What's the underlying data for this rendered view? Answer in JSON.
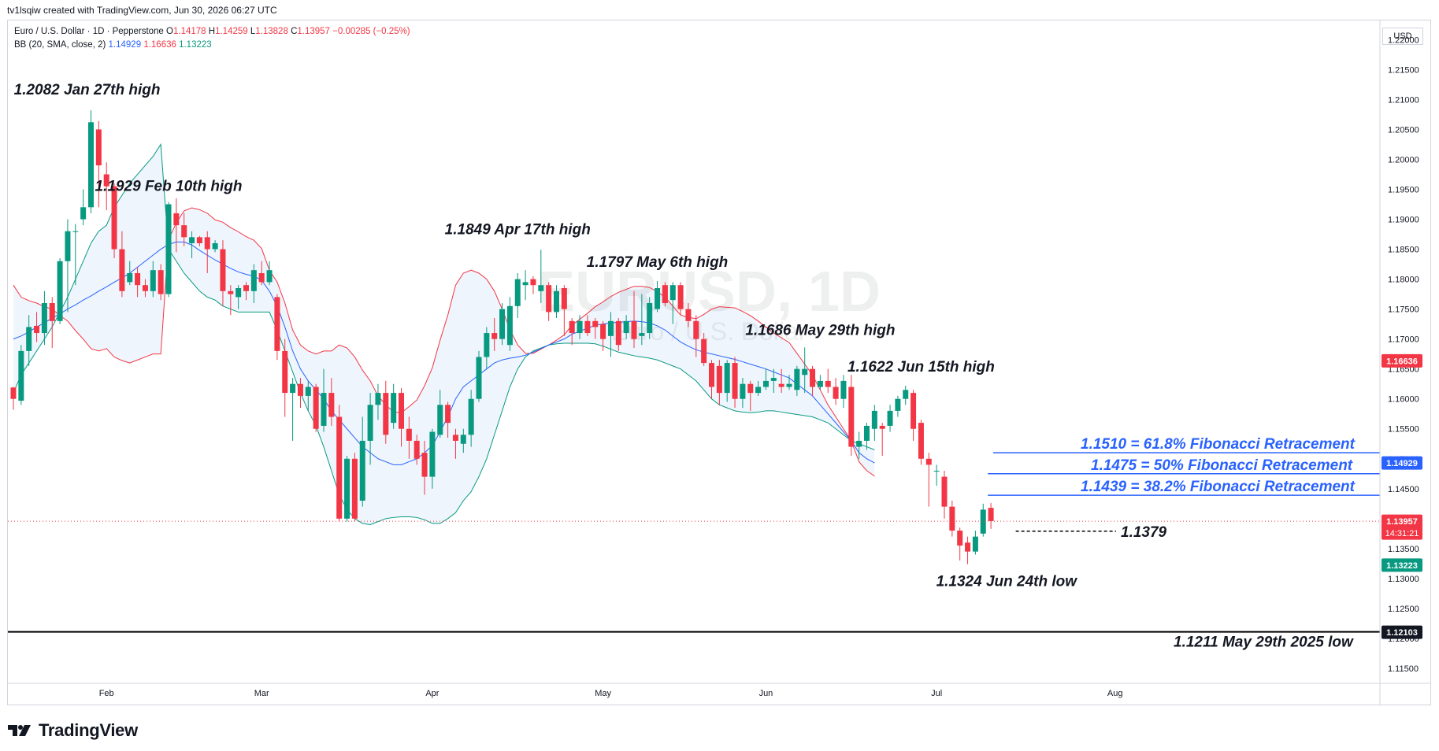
{
  "header": {
    "created_by": "tv1lsqiw created with TradingView.com, Jun 30, 2026 06:27 UTC",
    "symbol": "Euro / U.S. Dollar · 1D · Pepperstone",
    "o_label": "O",
    "o": "1.14178",
    "h_label": "H",
    "h": "1.14259",
    "l_label": "L",
    "l": "1.13828",
    "c_label": "C",
    "c": "1.13957",
    "change": "−0.00285 (−0.25%)",
    "bb_label": "BB (20, SMA, close, 2)",
    "bb_basis": "1.14929",
    "bb_upper": "1.16636",
    "bb_lower": "1.13223"
  },
  "currency": "USD",
  "watermark": {
    "ticker": "EURUSD, 1D",
    "name": "Euro / U.S. Dollar"
  },
  "footer": {
    "brand": "TradingView"
  },
  "colors": {
    "up": "#089981",
    "down": "#f23645",
    "basis": "#2962ff",
    "upper": "#f23645",
    "lower": "#089981",
    "fill": "#eaf3fb",
    "fib": "#2962ff"
  },
  "chart_data": {
    "type": "candlestick",
    "title": "",
    "y_ticks": [
      "1.22000",
      "1.21500",
      "1.21000",
      "1.20500",
      "1.20000",
      "1.19500",
      "1.19000",
      "1.18500",
      "1.18000",
      "1.17500",
      "1.17000",
      "1.16500",
      "1.16000",
      "1.15500",
      "1.15000",
      "1.14500",
      "1.14000",
      "1.13500",
      "1.13000",
      "1.12500",
      "1.12000",
      "1.11500"
    ],
    "y_tick_values": [
      1.22,
      1.215,
      1.21,
      1.205,
      1.2,
      1.195,
      1.19,
      1.185,
      1.18,
      1.175,
      1.17,
      1.165,
      1.16,
      1.155,
      1.15,
      1.145,
      1.14,
      1.135,
      1.13,
      1.125,
      1.12,
      1.115
    ],
    "ylim": [
      1.1125,
      1.2232
    ],
    "x_ticks": [
      {
        "label": "Feb",
        "i": 12
      },
      {
        "label": "Mar",
        "i": 32
      },
      {
        "label": "Apr",
        "i": 54
      },
      {
        "label": "May",
        "i": 76
      },
      {
        "label": "Jun",
        "i": 97
      },
      {
        "label": "Jul",
        "i": 119
      },
      {
        "label": "Aug",
        "i": 142
      }
    ],
    "x_range": [
      0,
      155
    ],
    "candles": [
      [
        1.1619,
        1.16,
        1.1582,
        1.162
      ],
      [
        1.1597,
        1.168,
        1.159,
        1.169
      ],
      [
        1.168,
        1.172,
        1.1655,
        1.174
      ],
      [
        1.1722,
        1.171,
        1.1695,
        1.1745
      ],
      [
        1.171,
        1.176,
        1.169,
        1.178
      ],
      [
        1.176,
        1.173,
        1.1685,
        1.177
      ],
      [
        1.173,
        1.183,
        1.1725,
        1.1835
      ],
      [
        1.183,
        1.188,
        1.1745,
        1.19
      ],
      [
        1.188,
        1.188,
        1.179,
        1.1892
      ],
      [
        1.19,
        1.192,
        1.189,
        1.195
      ],
      [
        1.192,
        1.2062,
        1.191,
        1.2082
      ],
      [
        1.205,
        1.199,
        1.192,
        1.2064
      ],
      [
        1.1975,
        1.1955,
        1.1915,
        1.1995
      ],
      [
        1.1955,
        1.185,
        1.1835,
        1.196
      ],
      [
        1.185,
        1.178,
        1.177,
        1.188
      ],
      [
        1.1795,
        1.181,
        1.179,
        1.183
      ],
      [
        1.181,
        1.179,
        1.177,
        1.182
      ],
      [
        1.179,
        1.178,
        1.177,
        1.18
      ],
      [
        1.178,
        1.1815,
        1.177,
        1.183
      ],
      [
        1.1815,
        1.1775,
        1.1765,
        1.1825
      ],
      [
        1.1775,
        1.1925,
        1.177,
        1.1929
      ],
      [
        1.191,
        1.189,
        1.1845,
        1.1935
      ],
      [
        1.189,
        1.187,
        1.1855,
        1.191
      ],
      [
        1.186,
        1.187,
        1.1835,
        1.188
      ],
      [
        1.187,
        1.186,
        1.1855,
        1.1872
      ],
      [
        1.187,
        1.185,
        1.181,
        1.188
      ],
      [
        1.185,
        1.186,
        1.1845,
        1.1865
      ],
      [
        1.185,
        1.178,
        1.1755,
        1.1865
      ],
      [
        1.178,
        1.1775,
        1.174,
        1.179
      ],
      [
        1.177,
        1.1785,
        1.175,
        1.179
      ],
      [
        1.179,
        1.178,
        1.1765,
        1.1795
      ],
      [
        1.178,
        1.1815,
        1.176,
        1.1825
      ],
      [
        1.181,
        1.1795,
        1.179,
        1.183
      ],
      [
        1.1795,
        1.1815,
        1.179,
        1.183
      ],
      [
        1.177,
        1.168,
        1.1665,
        1.1775
      ],
      [
        1.168,
        1.161,
        1.157,
        1.17
      ],
      [
        1.161,
        1.1625,
        1.153,
        1.1635
      ],
      [
        1.1625,
        1.1605,
        1.1585,
        1.1635
      ],
      [
        1.1605,
        1.162,
        1.158,
        1.163
      ],
      [
        1.162,
        1.155,
        1.1545,
        1.1625
      ],
      [
        1.1555,
        1.161,
        1.1545,
        1.165
      ],
      [
        1.161,
        1.157,
        1.1555,
        1.1635
      ],
      [
        1.157,
        1.14,
        1.1395,
        1.159
      ],
      [
        1.14,
        1.15,
        1.1395,
        1.1505
      ],
      [
        1.15,
        1.14,
        1.1395,
        1.151
      ],
      [
        1.143,
        1.153,
        1.142,
        1.157
      ],
      [
        1.153,
        1.159,
        1.149,
        1.161
      ],
      [
        1.159,
        1.161,
        1.1565,
        1.1625
      ],
      [
        1.161,
        1.154,
        1.1525,
        1.163
      ],
      [
        1.156,
        1.161,
        1.155,
        1.1625
      ],
      [
        1.161,
        1.155,
        1.152,
        1.1618
      ],
      [
        1.155,
        1.153,
        1.15,
        1.157
      ],
      [
        1.153,
        1.15,
        1.149,
        1.154
      ],
      [
        1.151,
        1.147,
        1.144,
        1.153
      ],
      [
        1.147,
        1.1545,
        1.145,
        1.155
      ],
      [
        1.154,
        1.159,
        1.1535,
        1.1615
      ],
      [
        1.159,
        1.156,
        1.1535,
        1.1595
      ],
      [
        1.154,
        1.153,
        1.15,
        1.155
      ],
      [
        1.1525,
        1.154,
        1.151,
        1.155
      ],
      [
        1.154,
        1.16,
        1.152,
        1.1615
      ],
      [
        1.16,
        1.167,
        1.1595,
        1.168
      ],
      [
        1.167,
        1.171,
        1.165,
        1.172
      ],
      [
        1.171,
        1.17,
        1.168,
        1.1735
      ],
      [
        1.17,
        1.175,
        1.169,
        1.176
      ],
      [
        1.169,
        1.1755,
        1.168,
        1.177
      ],
      [
        1.1755,
        1.18,
        1.1735,
        1.181
      ],
      [
        1.179,
        1.1795,
        1.1765,
        1.1815
      ],
      [
        1.18,
        1.179,
        1.1775,
        1.1805
      ],
      [
        1.178,
        1.179,
        1.176,
        1.1849
      ],
      [
        1.179,
        1.1745,
        1.173,
        1.1795
      ],
      [
        1.1745,
        1.178,
        1.1735,
        1.179
      ],
      [
        1.1785,
        1.175,
        1.1705,
        1.179
      ],
      [
        1.173,
        1.171,
        1.169,
        1.1735
      ],
      [
        1.171,
        1.173,
        1.17,
        1.174
      ],
      [
        1.173,
        1.171,
        1.1705,
        1.174
      ],
      [
        1.173,
        1.172,
        1.17,
        1.1735
      ],
      [
        1.1725,
        1.17,
        1.168,
        1.173
      ],
      [
        1.1705,
        1.173,
        1.167,
        1.1745
      ],
      [
        1.173,
        1.169,
        1.168,
        1.1735
      ],
      [
        1.171,
        1.173,
        1.17,
        1.174
      ],
      [
        1.173,
        1.17,
        1.1685,
        1.178
      ],
      [
        1.1705,
        1.171,
        1.169,
        1.1775
      ],
      [
        1.171,
        1.176,
        1.17,
        1.177
      ],
      [
        1.175,
        1.1785,
        1.1745,
        1.1797
      ],
      [
        1.179,
        1.176,
        1.1755,
        1.1795
      ],
      [
        1.1765,
        1.179,
        1.1725,
        1.1795
      ],
      [
        1.179,
        1.175,
        1.174,
        1.1795
      ],
      [
        1.175,
        1.173,
        1.172,
        1.176
      ],
      [
        1.173,
        1.17,
        1.167,
        1.174
      ],
      [
        1.17,
        1.166,
        1.1655,
        1.171
      ],
      [
        1.166,
        1.162,
        1.16,
        1.1665
      ],
      [
        1.1655,
        1.161,
        1.159,
        1.1665
      ],
      [
        1.161,
        1.166,
        1.1595,
        1.1665
      ],
      [
        1.166,
        1.16,
        1.1585,
        1.167
      ],
      [
        1.16,
        1.1625,
        1.1585,
        1.1635
      ],
      [
        1.1625,
        1.161,
        1.158,
        1.163
      ],
      [
        1.161,
        1.162,
        1.1605,
        1.163
      ],
      [
        1.162,
        1.163,
        1.1615,
        1.165
      ],
      [
        1.163,
        1.1635,
        1.161,
        1.165
      ],
      [
        1.1625,
        1.162,
        1.161,
        1.165
      ],
      [
        1.162,
        1.1625,
        1.1615,
        1.164
      ],
      [
        1.1615,
        1.165,
        1.1605,
        1.1655
      ],
      [
        1.164,
        1.165,
        1.161,
        1.1686
      ],
      [
        1.165,
        1.162,
        1.1605,
        1.1655
      ],
      [
        1.162,
        1.163,
        1.1615,
        1.164
      ],
      [
        1.163,
        1.162,
        1.161,
        1.165
      ],
      [
        1.162,
        1.16,
        1.159,
        1.1635
      ],
      [
        1.16,
        1.163,
        1.1585,
        1.164
      ],
      [
        1.162,
        1.152,
        1.1505,
        1.164
      ],
      [
        1.152,
        1.153,
        1.15,
        1.1545
      ],
      [
        1.153,
        1.1555,
        1.1515,
        1.156
      ],
      [
        1.155,
        1.158,
        1.153,
        1.159
      ],
      [
        1.1555,
        1.155,
        1.1505,
        1.156
      ],
      [
        1.1555,
        1.158,
        1.1545,
        1.159
      ],
      [
        1.158,
        1.16,
        1.157,
        1.1605
      ],
      [
        1.16,
        1.1615,
        1.159,
        1.1622
      ],
      [
        1.161,
        1.155,
        1.153,
        1.1615
      ],
      [
        1.156,
        1.15,
        1.149,
        1.1565
      ],
      [
        1.15,
        1.149,
        1.142,
        1.151
      ],
      [
        1.148,
        1.148,
        1.1455,
        1.149
      ],
      [
        1.147,
        1.142,
        1.14,
        1.148
      ],
      [
        1.142,
        1.138,
        1.137,
        1.143
      ],
      [
        1.138,
        1.1355,
        1.133,
        1.1385
      ],
      [
        1.136,
        1.1345,
        1.1324,
        1.137
      ],
      [
        1.1345,
        1.137,
        1.134,
        1.138
      ],
      [
        1.1375,
        1.1415,
        1.137,
        1.1425
      ],
      [
        1.1418,
        1.1396,
        1.1383,
        1.1426
      ]
    ],
    "bb_lower": [
      1.161,
      1.164,
      1.166,
      1.168,
      1.17,
      1.172,
      1.1745,
      1.177,
      1.18,
      1.183,
      1.186,
      1.188,
      1.189,
      1.192,
      1.194,
      1.196,
      1.1975,
      1.199,
      1.2005,
      1.2025,
      1.185,
      1.183,
      1.181,
      1.1795,
      1.178,
      1.177,
      1.1765,
      1.1755,
      1.175,
      1.1745,
      1.1745,
      1.1745,
      1.1745,
      1.1745,
      1.1715,
      1.168,
      1.1645,
      1.161,
      1.158,
      1.1555,
      1.152,
      1.148,
      1.144,
      1.1415,
      1.14,
      1.1392,
      1.139,
      1.1395,
      1.14,
      1.1402,
      1.1403,
      1.1403,
      1.1402,
      1.1398,
      1.1392,
      1.1392,
      1.14,
      1.141,
      1.143,
      1.1445,
      1.147,
      1.15,
      1.154,
      1.158,
      1.162,
      1.165,
      1.167,
      1.168,
      1.1685,
      1.169,
      1.1692,
      1.1693,
      1.1693,
      1.1693,
      1.1693,
      1.1692,
      1.1688,
      1.1683,
      1.1678,
      1.1675,
      1.1672,
      1.167,
      1.1668,
      1.1665,
      1.166,
      1.1655,
      1.165,
      1.164,
      1.163,
      1.1615,
      1.16,
      1.159,
      1.1585,
      1.158,
      1.1578,
      1.1577,
      1.1578,
      1.158,
      1.158,
      1.1578,
      1.1576,
      1.1574,
      1.1572,
      1.157,
      1.1565,
      1.156,
      1.155,
      1.154,
      1.153,
      1.1525,
      1.152,
      1.1515,
      1.151,
      1.1505,
      1.15,
      1.1495,
      1.149,
      1.145,
      1.142,
      1.1395,
      1.138,
      1.1365,
      1.1345,
      1.133,
      1.132,
      1.1325
    ],
    "bb_basis": [
      1.17,
      1.1705,
      1.1712,
      1.172,
      1.1727,
      1.1735,
      1.1742,
      1.175,
      1.1757,
      1.1765,
      1.1772,
      1.178,
      1.1787,
      1.1795,
      1.1802,
      1.181,
      1.182,
      1.183,
      1.184,
      1.185,
      1.1858,
      1.1862,
      1.1862,
      1.1857,
      1.1848,
      1.184,
      1.1832,
      1.1825,
      1.1818,
      1.1812,
      1.1808,
      1.1805,
      1.1798,
      1.178,
      1.1755,
      1.172,
      1.168,
      1.165,
      1.163,
      1.1615,
      1.16,
      1.158,
      1.1565,
      1.155,
      1.1535,
      1.152,
      1.151,
      1.15,
      1.1495,
      1.149,
      1.149,
      1.1495,
      1.15,
      1.151,
      1.1522,
      1.1545,
      1.157,
      1.16,
      1.162,
      1.163,
      1.164,
      1.165,
      1.166,
      1.1665,
      1.1668,
      1.167,
      1.1673,
      1.1678,
      1.1684,
      1.169,
      1.1695,
      1.17,
      1.1708,
      1.1713,
      1.1718,
      1.1723,
      1.1725,
      1.1727,
      1.1728,
      1.1729,
      1.173,
      1.1729,
      1.1727,
      1.1722,
      1.1715,
      1.1705,
      1.1695,
      1.1688,
      1.1682,
      1.1678,
      1.1675,
      1.1672,
      1.1669,
      1.1666,
      1.1662,
      1.1658,
      1.1654,
      1.165,
      1.1645,
      1.164,
      1.1635,
      1.1625,
      1.1615,
      1.1605,
      1.159,
      1.1575,
      1.156,
      1.1545,
      1.153,
      1.151,
      1.15,
      1.1493
    ],
    "annotations": [
      {
        "label": "1.2082 Jan 27th high",
        "i": 9.5,
        "y": 1.2082
      },
      {
        "label": "1.1929 Feb 10th high",
        "i": 20,
        "y": 1.1929
      },
      {
        "label": "1.1849 Apr 17th high",
        "i": 65,
        "y": 1.1849
      },
      {
        "label": "1.1797 May 6th high",
        "i": 83,
        "y": 1.1797
      },
      {
        "label": "1.1686 May 29th high",
        "i": 104,
        "y": 1.1686
      },
      {
        "label": "1.1622 Jun 15th high",
        "i": 117,
        "y": 1.1622
      },
      {
        "label": "1.1324 Jun 24th low",
        "i": 128,
        "y": 1.1324
      }
    ],
    "fib_levels": [
      {
        "label": "1.1510 = 61.8% Fibonacci Retracement",
        "value": 1.151
      },
      {
        "label": "1.1475 = 50% Fibonacci Retracement",
        "value": 1.1475
      },
      {
        "label": "1.1439 = 38.2% Fibonacci Retracement",
        "value": 1.1439
      }
    ],
    "support": {
      "label": "1.1211 May 29th 2025 low",
      "value": 1.1211
    },
    "level_1379": {
      "label": "1.1379",
      "value": 1.1379
    },
    "current_price": {
      "label": "1.13957",
      "value": 1.13957,
      "countdown": "14:31:21"
    },
    "price_tags": [
      {
        "label": "1.16636",
        "value": 1.16636,
        "color": "#f23645"
      },
      {
        "label": "1.14929",
        "value": 1.14929,
        "color": "#2962ff"
      },
      {
        "label": "1.13223",
        "value": 1.13223,
        "color": "#089981"
      },
      {
        "label": "1.12103",
        "value": 1.12103,
        "color": "#131722"
      }
    ]
  }
}
